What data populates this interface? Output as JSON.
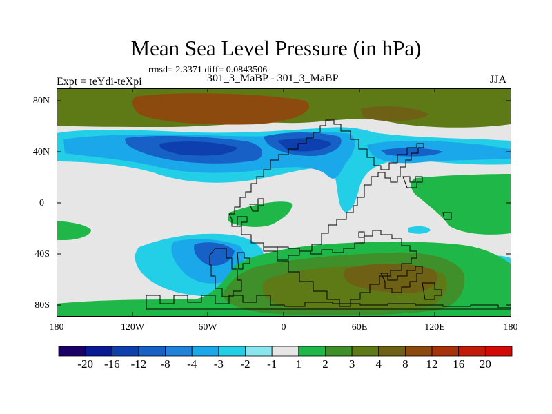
{
  "title": "Mean Sea Level Pressure (in hPa)",
  "stats": "rmsd= 2.3371 diff= 0.0843506",
  "experiment": "Expt = teYdi-teXpi",
  "runs": "301_3_MaBP - 301_3_MaBP",
  "season": "JJA",
  "lat_ticks": [
    "80N",
    "40N",
    "0",
    "40S",
    "80S"
  ],
  "lon_ticks": [
    "180",
    "120W",
    "60W",
    "0",
    "60E",
    "120E",
    "180"
  ],
  "colorbar": {
    "labels": [
      "-20",
      "-16",
      "-12",
      "-8",
      "-4",
      "-3",
      "-2",
      "-1",
      "1",
      "2",
      "3",
      "4",
      "8",
      "12",
      "16",
      "20"
    ],
    "colors": [
      "#1a0066",
      "#0a1a96",
      "#0d3fae",
      "#1660c6",
      "#1f83dc",
      "#1aa8ea",
      "#22cfe6",
      "#8ae6ee",
      "#e6e6e6",
      "#1fb848",
      "#3f8f2a",
      "#5e7a16",
      "#6e6014",
      "#8c4a0e",
      "#a8320a",
      "#c41a08",
      "#d40a06"
    ]
  }
}
